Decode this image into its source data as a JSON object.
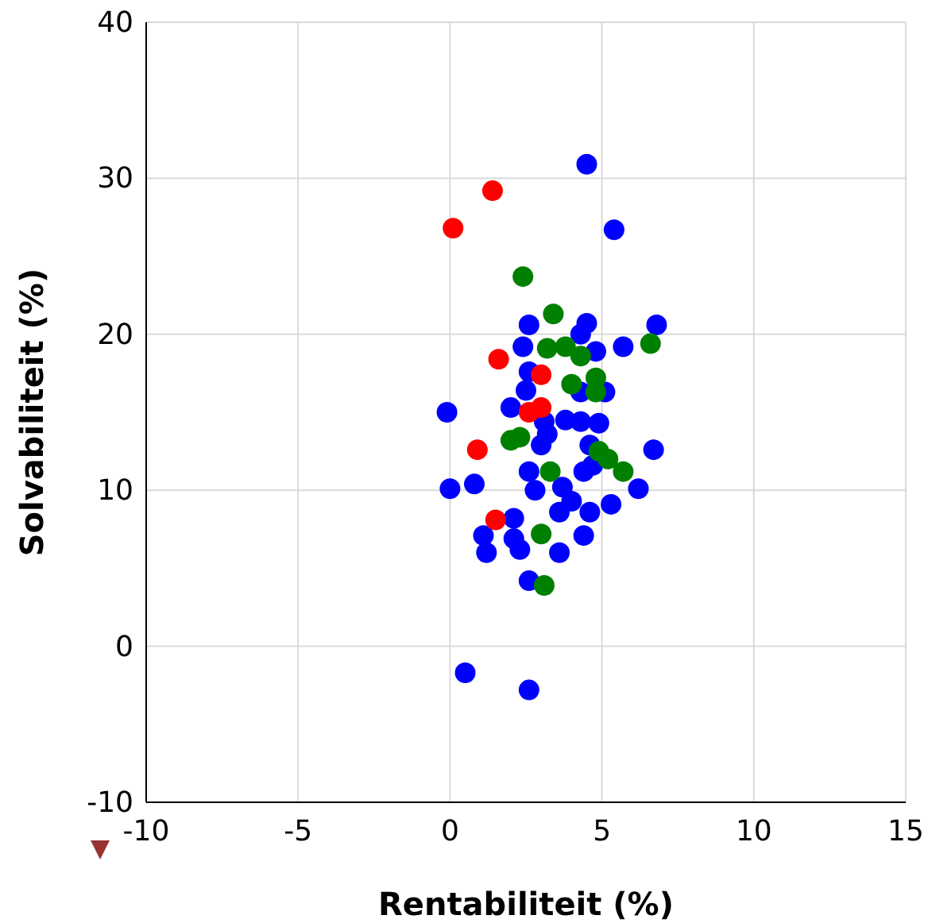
{
  "chart_data": {
    "type": "scatter",
    "xlabel": "Rentabiliteit (%)",
    "ylabel": "Solvabiliteit (%)",
    "xlim": [
      -10,
      15
    ],
    "xticks": [
      -10,
      -5,
      0,
      5,
      10,
      15
    ],
    "ylim": [
      -10,
      40
    ],
    "yticks": [
      -10,
      0,
      10,
      20,
      30,
      40
    ],
    "grid": true,
    "marker": "circle",
    "series": [
      {
        "color": "#0000ff",
        "x": [
          4.5,
          5.4,
          2.6,
          4.5,
          4.3,
          6.8,
          2.4,
          5.7,
          4.8,
          2.6,
          2.5,
          5.1,
          4.3,
          2.0,
          -0.1,
          3.8,
          4.3,
          4.9,
          3.1,
          2.6,
          2.8,
          3.7,
          4.0,
          3.6,
          4.4,
          4.6,
          5.3,
          6.2,
          6.7,
          0.8,
          0.0,
          2.1,
          1.1,
          1.2,
          2.1,
          2.3,
          4.4,
          3.6,
          2.6,
          0.5,
          2.6,
          4.6,
          3.0,
          3.2,
          4.7
        ],
        "values": [
          30.9,
          26.7,
          20.6,
          20.7,
          20.0,
          20.6,
          19.2,
          19.2,
          18.9,
          17.6,
          16.4,
          16.3,
          16.3,
          15.3,
          15.0,
          14.5,
          14.4,
          14.3,
          14.4,
          11.2,
          10.0,
          10.2,
          9.3,
          8.6,
          11.2,
          8.6,
          9.1,
          10.1,
          12.6,
          10.4,
          10.1,
          8.2,
          7.1,
          6.0,
          6.9,
          6.2,
          7.1,
          6.0,
          4.2,
          -1.7,
          -2.8,
          12.9,
          12.9,
          13.6,
          11.6
        ]
      },
      {
        "color": "#008000",
        "x": [
          2.4,
          3.4,
          3.2,
          3.8,
          4.3,
          4.8,
          4.0,
          4.8,
          6.6,
          2.0,
          2.3,
          4.9,
          5.2,
          5.7,
          3.3,
          3.0,
          3.1
        ],
        "values": [
          23.7,
          21.3,
          19.1,
          19.2,
          18.6,
          17.2,
          16.8,
          16.3,
          19.4,
          13.2,
          13.4,
          12.5,
          12.0,
          11.2,
          11.2,
          7.2,
          3.9
        ]
      },
      {
        "color": "#ff0000",
        "x": [
          0.1,
          1.4,
          1.6,
          0.9,
          3.0,
          2.6,
          3.0,
          1.5
        ],
        "values": [
          26.8,
          29.2,
          18.4,
          12.6,
          17.4,
          15.0,
          15.3,
          8.1
        ]
      }
    ]
  }
}
